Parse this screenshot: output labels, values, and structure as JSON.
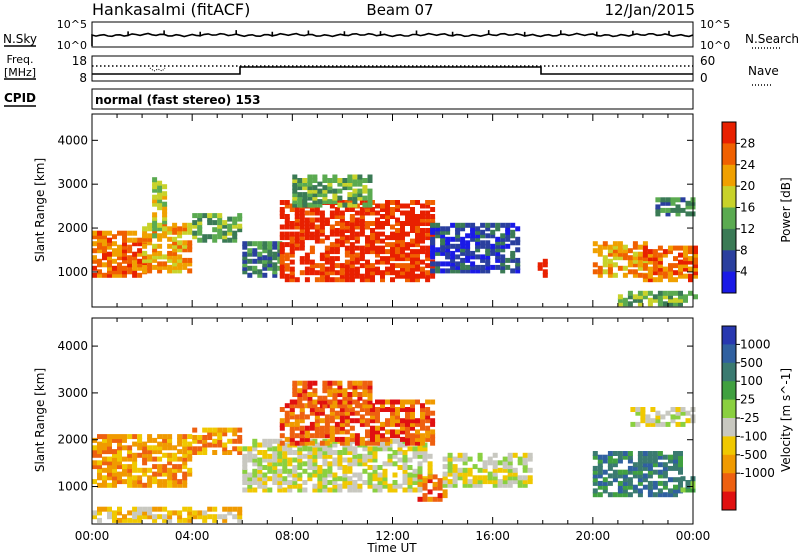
{
  "header": {
    "station": "Hankasalmi (fitACF)",
    "beam": "Beam 07",
    "date": "12/Jan/2015"
  },
  "noise_panel": {
    "left_label": "N.Sky",
    "left_ticks": [
      "10^5",
      "10^0"
    ],
    "right_ticks": [
      "10^5",
      "10^0"
    ],
    "right_label": "N.Search"
  },
  "freq_panel": {
    "left_label_1": "Freq.",
    "left_label_2": "[MHz]",
    "left_ticks": [
      "18",
      "8"
    ],
    "right_ticks": [
      "60",
      "0"
    ],
    "right_label": "Nave"
  },
  "cpid_panel": {
    "left_label": "CPID",
    "mode_text": "normal (fast stereo) 153"
  },
  "colors": {
    "power": [
      "#1a1ae6",
      "#2a3f9e",
      "#3a7a55",
      "#5aaa50",
      "#c8d22a",
      "#f0a000",
      "#f06000",
      "#e82000"
    ],
    "velocity": [
      "#e01010",
      "#ee6010",
      "#f09a00",
      "#f0c800",
      "#c8c8c0",
      "#8ad040",
      "#40a040",
      "#3a7a70",
      "#3060a0",
      "#2838b0"
    ]
  },
  "chart_data": [
    {
      "type": "heatmap",
      "name": "Power",
      "ylabel": "Slant Range [km]",
      "yticks": [
        1000,
        2000,
        3000,
        4000
      ],
      "ylim": [
        200,
        4600
      ],
      "x_range": [
        "00:00",
        "24:00"
      ],
      "colorbar_label": "Power [dB]",
      "colorbar_ticks": [
        4,
        8,
        12,
        16,
        20,
        24,
        28
      ],
      "regions": [
        {
          "t0": 0.0,
          "t1": 2.0,
          "r0": 900,
          "r1": 1900,
          "level": 6
        },
        {
          "t0": 2.0,
          "t1": 4.0,
          "r0": 1000,
          "r1": 2100,
          "level": 5
        },
        {
          "t0": 4.0,
          "t1": 6.0,
          "r0": 1700,
          "r1": 2300,
          "level": 3
        },
        {
          "t0": 2.4,
          "t1": 2.9,
          "r0": 1800,
          "r1": 3100,
          "level": 4
        },
        {
          "t0": 6.0,
          "t1": 7.5,
          "r0": 900,
          "r1": 1700,
          "level": 2
        },
        {
          "t0": 7.5,
          "t1": 13.5,
          "r0": 800,
          "r1": 2600,
          "level": 7
        },
        {
          "t0": 8.0,
          "t1": 11.0,
          "r0": 2500,
          "r1": 3200,
          "level": 3
        },
        {
          "t0": 13.5,
          "t1": 17.0,
          "r0": 1000,
          "r1": 2100,
          "level": 1
        },
        {
          "t0": 17.8,
          "t1": 18.2,
          "r0": 900,
          "r1": 1300,
          "level": 7
        },
        {
          "t0": 20.0,
          "t1": 22.0,
          "r0": 900,
          "r1": 1700,
          "level": 5
        },
        {
          "t0": 22.0,
          "t1": 24.0,
          "r0": 800,
          "r1": 1600,
          "level": 6
        },
        {
          "t0": 22.5,
          "t1": 24.0,
          "r0": 2300,
          "r1": 2700,
          "level": 2
        },
        {
          "t0": 21.0,
          "t1": 24.0,
          "r0": 250,
          "r1": 500,
          "level": 3
        }
      ]
    },
    {
      "type": "heatmap",
      "name": "Velocity",
      "ylabel": "Slant Range [km]",
      "yticks": [
        1000,
        2000,
        3000,
        4000
      ],
      "ylim": [
        200,
        4600
      ],
      "x_range": [
        "00:00",
        "24:00"
      ],
      "xticks": [
        "00:00",
        "04:00",
        "08:00",
        "12:00",
        "16:00",
        "20:00",
        "00:00"
      ],
      "xlabel": "Time UT",
      "colorbar_label": "Velocity [m s^-1]",
      "colorbar_ticks": [
        1000,
        500,
        100,
        25,
        -25,
        -100,
        -500,
        -1000
      ],
      "regions": [
        {
          "t0": 0.0,
          "t1": 4.0,
          "r0": 1000,
          "r1": 2100,
          "level": 2
        },
        {
          "t0": 4.0,
          "t1": 6.0,
          "r0": 1700,
          "r1": 2200,
          "level": 2
        },
        {
          "t0": 6.0,
          "t1": 13.5,
          "r0": 900,
          "r1": 2000,
          "level": 4
        },
        {
          "t0": 7.5,
          "t1": 13.5,
          "r0": 1900,
          "r1": 2800,
          "level": 1
        },
        {
          "t0": 8.0,
          "t1": 11.0,
          "r0": 2700,
          "r1": 3200,
          "level": 1
        },
        {
          "t0": 13.0,
          "t1": 14.0,
          "r0": 700,
          "r1": 1200,
          "level": 1
        },
        {
          "t0": 14.0,
          "t1": 17.5,
          "r0": 1000,
          "r1": 1700,
          "level": 4
        },
        {
          "t0": 20.0,
          "t1": 23.5,
          "r0": 800,
          "r1": 1700,
          "level": 7
        },
        {
          "t0": 23.5,
          "t1": 24.0,
          "r0": 900,
          "r1": 1200,
          "level": 6
        },
        {
          "t0": 21.5,
          "t1": 24.0,
          "r0": 2300,
          "r1": 2700,
          "level": 4
        },
        {
          "t0": 0.0,
          "t1": 6.0,
          "r0": 250,
          "r1": 500,
          "level": 3
        }
      ]
    }
  ]
}
